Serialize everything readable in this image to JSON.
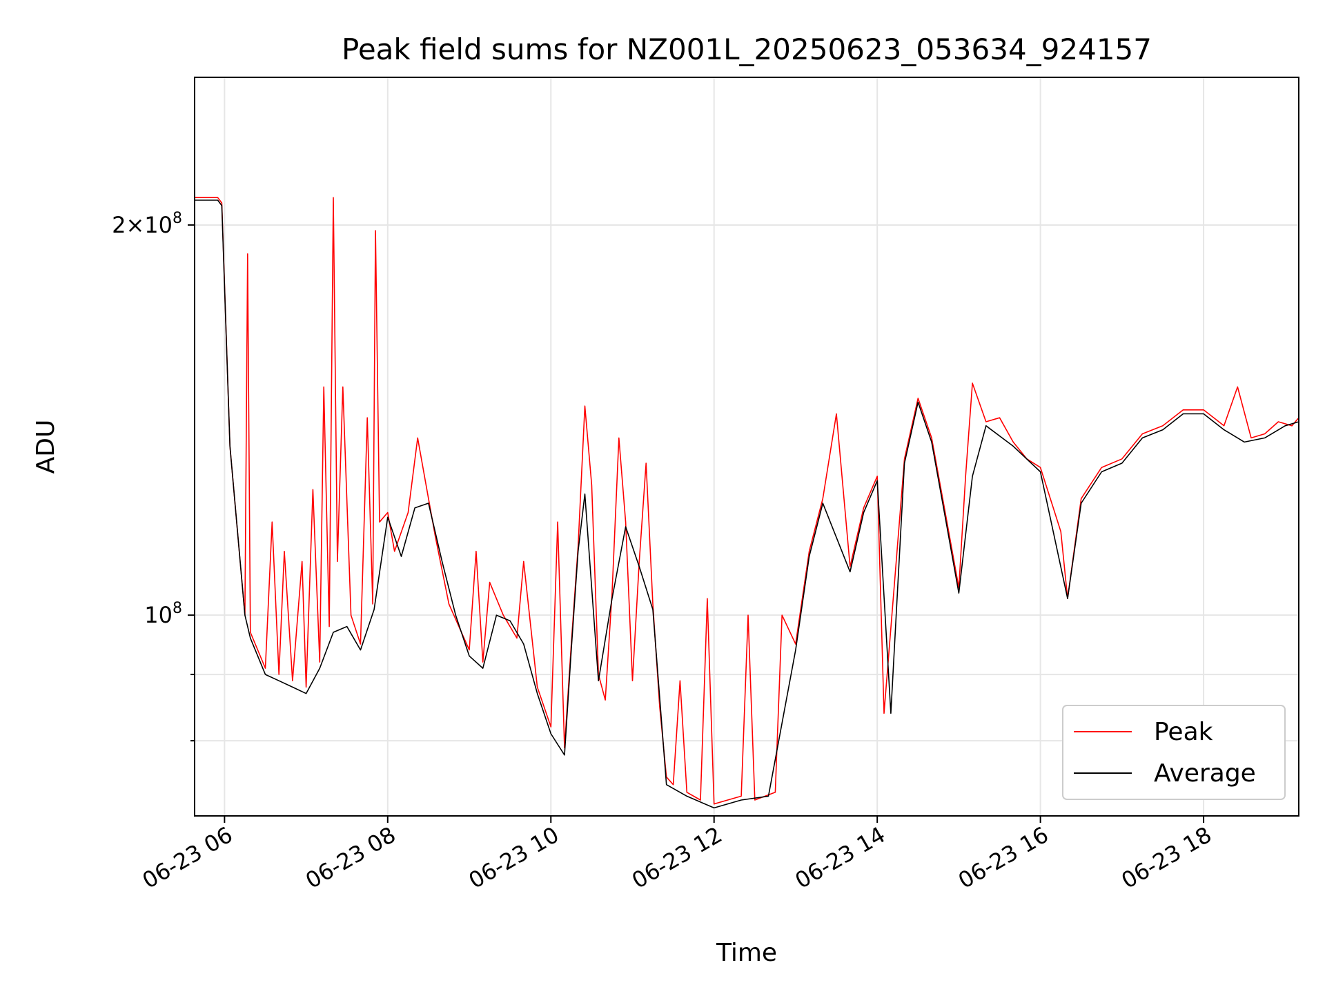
{
  "chart_data": {
    "type": "line",
    "title": "Peak field sums for NZ001L_20250623_053634_924157",
    "xlabel": "Time",
    "ylabel": "ADU",
    "y_scale": "log",
    "grid": true,
    "legend_position": "lower-right",
    "xlim": [
      "2025-06-23 05:38",
      "2025-06-23 19:10"
    ],
    "ylim": [
      70000000,
      260000000
    ],
    "x_tick_labels": [
      "06-23 06",
      "06-23 08",
      "06-23 10",
      "06-23 12",
      "06-23 14",
      "06-23 16",
      "06-23 18"
    ],
    "y_tick_labels": [
      {
        "value": 200000000,
        "base": "2×10",
        "exp": "8"
      },
      {
        "value": 100000000,
        "base": "10",
        "exp": "8"
      }
    ],
    "y_minor_ticks": [
      80000000,
      90000000
    ],
    "series": [
      {
        "name": "Peak",
        "color": "#ff0000",
        "points": [
          [
            "2025-06-23 05:38",
            210000000
          ],
          [
            "2025-06-23 05:55",
            210000000
          ],
          [
            "2025-06-23 05:58",
            208000000
          ],
          [
            "2025-06-23 06:04",
            135000000
          ],
          [
            "2025-06-23 06:15",
            100000000
          ],
          [
            "2025-06-23 06:17",
            190000000
          ],
          [
            "2025-06-23 06:19",
            97000000
          ],
          [
            "2025-06-23 06:30",
            91000000
          ],
          [
            "2025-06-23 06:35",
            118000000
          ],
          [
            "2025-06-23 06:40",
            90000000
          ],
          [
            "2025-06-23 06:44",
            112000000
          ],
          [
            "2025-06-23 06:50",
            89000000
          ],
          [
            "2025-06-23 06:57",
            110000000
          ],
          [
            "2025-06-23 07:00",
            88000000
          ],
          [
            "2025-06-23 07:05",
            125000000
          ],
          [
            "2025-06-23 07:10",
            92000000
          ],
          [
            "2025-06-23 07:13",
            150000000
          ],
          [
            "2025-06-23 07:17",
            98000000
          ],
          [
            "2025-06-23 07:20",
            210000000
          ],
          [
            "2025-06-23 07:23",
            110000000
          ],
          [
            "2025-06-23 07:27",
            150000000
          ],
          [
            "2025-06-23 07:33",
            100000000
          ],
          [
            "2025-06-23 07:40",
            95000000
          ],
          [
            "2025-06-23 07:45",
            142000000
          ],
          [
            "2025-06-23 07:49",
            102000000
          ],
          [
            "2025-06-23 07:51",
            198000000
          ],
          [
            "2025-06-23 07:54",
            118000000
          ],
          [
            "2025-06-23 08:00",
            120000000
          ],
          [
            "2025-06-23 08:05",
            112000000
          ],
          [
            "2025-06-23 08:15",
            120000000
          ],
          [
            "2025-06-23 08:22",
            137000000
          ],
          [
            "2025-06-23 08:30",
            123000000
          ],
          [
            "2025-06-23 08:35",
            115000000
          ],
          [
            "2025-06-23 08:45",
            102000000
          ],
          [
            "2025-06-23 09:00",
            94000000
          ],
          [
            "2025-06-23 09:05",
            112000000
          ],
          [
            "2025-06-23 09:10",
            92000000
          ],
          [
            "2025-06-23 09:15",
            106000000
          ],
          [
            "2025-06-23 09:25",
            100000000
          ],
          [
            "2025-06-23 09:35",
            96000000
          ],
          [
            "2025-06-23 09:40",
            110000000
          ],
          [
            "2025-06-23 09:50",
            88000000
          ],
          [
            "2025-06-23 10:00",
            82000000
          ],
          [
            "2025-06-23 10:05",
            118000000
          ],
          [
            "2025-06-23 10:10",
            79000000
          ],
          [
            "2025-06-23 10:15",
            95000000
          ],
          [
            "2025-06-23 10:20",
            113000000
          ],
          [
            "2025-06-23 10:25",
            145000000
          ],
          [
            "2025-06-23 10:30",
            126000000
          ],
          [
            "2025-06-23 10:35",
            90000000
          ],
          [
            "2025-06-23 10:40",
            86000000
          ],
          [
            "2025-06-23 10:45",
            104000000
          ],
          [
            "2025-06-23 10:50",
            137000000
          ],
          [
            "2025-06-23 10:55",
            118000000
          ],
          [
            "2025-06-23 11:00",
            89000000
          ],
          [
            "2025-06-23 11:05",
            110000000
          ],
          [
            "2025-06-23 11:10",
            131000000
          ],
          [
            "2025-06-23 11:15",
            102000000
          ],
          [
            "2025-06-23 11:20",
            85000000
          ],
          [
            "2025-06-23 11:25",
            75000000
          ],
          [
            "2025-06-23 11:30",
            74000000
          ],
          [
            "2025-06-23 11:35",
            89000000
          ],
          [
            "2025-06-23 11:40",
            73000000
          ],
          [
            "2025-06-23 11:50",
            72000000
          ],
          [
            "2025-06-23 11:55",
            103000000
          ],
          [
            "2025-06-23 12:00",
            71500000
          ],
          [
            "2025-06-23 12:10",
            72000000
          ],
          [
            "2025-06-23 12:20",
            72500000
          ],
          [
            "2025-06-23 12:25",
            100000000
          ],
          [
            "2025-06-23 12:30",
            72000000
          ],
          [
            "2025-06-23 12:45",
            73000000
          ],
          [
            "2025-06-23 12:50",
            100000000
          ],
          [
            "2025-06-23 13:00",
            95000000
          ],
          [
            "2025-06-23 13:10",
            112000000
          ],
          [
            "2025-06-23 13:20",
            123000000
          ],
          [
            "2025-06-23 13:30",
            143000000
          ],
          [
            "2025-06-23 13:40",
            109000000
          ],
          [
            "2025-06-23 13:50",
            121000000
          ],
          [
            "2025-06-23 14:00",
            128000000
          ],
          [
            "2025-06-23 14:05",
            84000000
          ],
          [
            "2025-06-23 14:20",
            132000000
          ],
          [
            "2025-06-23 14:30",
            147000000
          ],
          [
            "2025-06-23 14:40",
            137000000
          ],
          [
            "2025-06-23 14:50",
            120000000
          ],
          [
            "2025-06-23 15:00",
            105000000
          ],
          [
            "2025-06-23 15:05",
            128000000
          ],
          [
            "2025-06-23 15:10",
            151000000
          ],
          [
            "2025-06-23 15:20",
            141000000
          ],
          [
            "2025-06-23 15:30",
            142000000
          ],
          [
            "2025-06-23 15:40",
            136000000
          ],
          [
            "2025-06-23 15:50",
            132000000
          ],
          [
            "2025-06-23 16:00",
            130000000
          ],
          [
            "2025-06-23 16:15",
            116000000
          ],
          [
            "2025-06-23 16:20",
            103000000
          ],
          [
            "2025-06-23 16:30",
            123000000
          ],
          [
            "2025-06-23 16:45",
            130000000
          ],
          [
            "2025-06-23 17:00",
            132000000
          ],
          [
            "2025-06-23 17:15",
            138000000
          ],
          [
            "2025-06-23 17:30",
            140000000
          ],
          [
            "2025-06-23 17:45",
            144000000
          ],
          [
            "2025-06-23 18:00",
            144000000
          ],
          [
            "2025-06-23 18:15",
            140000000
          ],
          [
            "2025-06-23 18:25",
            150000000
          ],
          [
            "2025-06-23 18:35",
            137000000
          ],
          [
            "2025-06-23 18:45",
            138000000
          ],
          [
            "2025-06-23 18:55",
            141000000
          ],
          [
            "2025-06-23 19:05",
            140000000
          ],
          [
            "2025-06-23 19:10",
            142000000
          ]
        ]
      },
      {
        "name": "Average",
        "color": "#000000",
        "points": [
          [
            "2025-06-23 05:38",
            209000000
          ],
          [
            "2025-06-23 05:55",
            209000000
          ],
          [
            "2025-06-23 05:58",
            207000000
          ],
          [
            "2025-06-23 06:04",
            135000000
          ],
          [
            "2025-06-23 06:15",
            100000000
          ],
          [
            "2025-06-23 06:19",
            96000000
          ],
          [
            "2025-06-23 06:30",
            90000000
          ],
          [
            "2025-06-23 06:40",
            89000000
          ],
          [
            "2025-06-23 06:50",
            88000000
          ],
          [
            "2025-06-23 07:00",
            87000000
          ],
          [
            "2025-06-23 07:10",
            91000000
          ],
          [
            "2025-06-23 07:20",
            97000000
          ],
          [
            "2025-06-23 07:30",
            98000000
          ],
          [
            "2025-06-23 07:40",
            94000000
          ],
          [
            "2025-06-23 07:50",
            101000000
          ],
          [
            "2025-06-23 08:00",
            119000000
          ],
          [
            "2025-06-23 08:10",
            111000000
          ],
          [
            "2025-06-23 08:20",
            121000000
          ],
          [
            "2025-06-23 08:30",
            122000000
          ],
          [
            "2025-06-23 08:40",
            110000000
          ],
          [
            "2025-06-23 08:50",
            100000000
          ],
          [
            "2025-06-23 09:00",
            93000000
          ],
          [
            "2025-06-23 09:10",
            91000000
          ],
          [
            "2025-06-23 09:20",
            100000000
          ],
          [
            "2025-06-23 09:30",
            99000000
          ],
          [
            "2025-06-23 09:40",
            95000000
          ],
          [
            "2025-06-23 09:50",
            87000000
          ],
          [
            "2025-06-23 10:00",
            81000000
          ],
          [
            "2025-06-23 10:10",
            78000000
          ],
          [
            "2025-06-23 10:15",
            94000000
          ],
          [
            "2025-06-23 10:20",
            112000000
          ],
          [
            "2025-06-23 10:25",
            124000000
          ],
          [
            "2025-06-23 10:35",
            89000000
          ],
          [
            "2025-06-23 10:45",
            103000000
          ],
          [
            "2025-06-23 10:55",
            117000000
          ],
          [
            "2025-06-23 11:05",
            109000000
          ],
          [
            "2025-06-23 11:15",
            101000000
          ],
          [
            "2025-06-23 11:25",
            74000000
          ],
          [
            "2025-06-23 11:40",
            72500000
          ],
          [
            "2025-06-23 12:00",
            71000000
          ],
          [
            "2025-06-23 12:20",
            72000000
          ],
          [
            "2025-06-23 12:40",
            72500000
          ],
          [
            "2025-06-23 13:00",
            94000000
          ],
          [
            "2025-06-23 13:10",
            111000000
          ],
          [
            "2025-06-23 13:20",
            122000000
          ],
          [
            "2025-06-23 13:40",
            108000000
          ],
          [
            "2025-06-23 13:50",
            120000000
          ],
          [
            "2025-06-23 14:00",
            127000000
          ],
          [
            "2025-06-23 14:10",
            84000000
          ],
          [
            "2025-06-23 14:20",
            131000000
          ],
          [
            "2025-06-23 14:30",
            146000000
          ],
          [
            "2025-06-23 14:40",
            136000000
          ],
          [
            "2025-06-23 14:50",
            119000000
          ],
          [
            "2025-06-23 15:00",
            104000000
          ],
          [
            "2025-06-23 15:10",
            128000000
          ],
          [
            "2025-06-23 15:20",
            140000000
          ],
          [
            "2025-06-23 15:40",
            135000000
          ],
          [
            "2025-06-23 16:00",
            129000000
          ],
          [
            "2025-06-23 16:20",
            103000000
          ],
          [
            "2025-06-23 16:30",
            122000000
          ],
          [
            "2025-06-23 16:45",
            129000000
          ],
          [
            "2025-06-23 17:00",
            131000000
          ],
          [
            "2025-06-23 17:15",
            137000000
          ],
          [
            "2025-06-23 17:30",
            139000000
          ],
          [
            "2025-06-23 17:45",
            143000000
          ],
          [
            "2025-06-23 18:00",
            143000000
          ],
          [
            "2025-06-23 18:15",
            139000000
          ],
          [
            "2025-06-23 18:30",
            136000000
          ],
          [
            "2025-06-23 18:45",
            137000000
          ],
          [
            "2025-06-23 19:00",
            140000000
          ],
          [
            "2025-06-23 19:10",
            141000000
          ]
        ]
      }
    ]
  }
}
